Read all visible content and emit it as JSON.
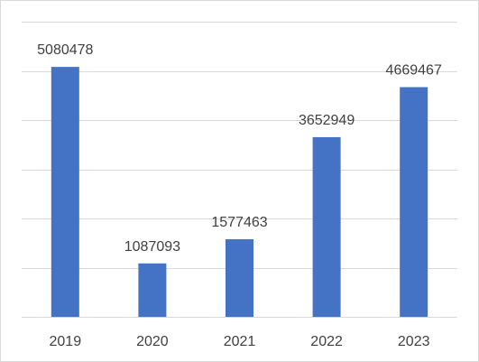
{
  "chart_data": {
    "type": "bar",
    "title": "",
    "xlabel": "",
    "ylabel": "",
    "categories": [
      "2019",
      "2020",
      "2021",
      "2022",
      "2023"
    ],
    "values": [
      5080478,
      1087093,
      1577463,
      3652949,
      4669467
    ],
    "data_labels": [
      "5080478",
      "1087093",
      "1577463",
      "3652949",
      "4669467"
    ],
    "ylim": [
      0,
      6000000
    ],
    "y_gridlines": [
      1000000,
      2000000,
      3000000,
      4000000,
      5000000,
      6000000
    ],
    "grid": true,
    "legend": "none",
    "y_tick_labels_visible": false,
    "bar_color": "#4472c4",
    "grid_color": "#d9d9d9",
    "text_color": "#404040"
  }
}
